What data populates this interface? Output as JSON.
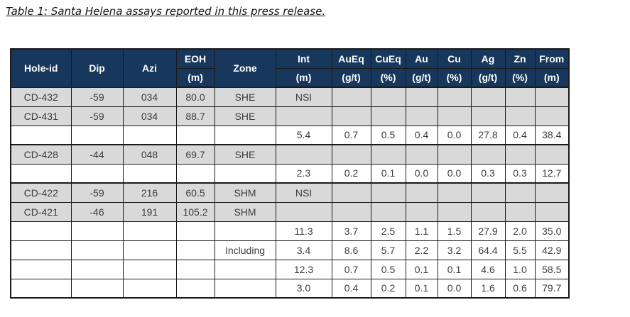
{
  "title": "Table 1: Santa Helena assays reported in this press release.",
  "colors": {
    "header_bg": "#17375d",
    "header_text": "#ffffff",
    "row_shaded": "#d9d9d9",
    "row_plain": "#ffffff",
    "border": "#1a1a1a",
    "body_text": "#3d3d3d"
  },
  "table": {
    "columns": [
      {
        "key": "hole-id",
        "label": "Hole-id",
        "unit": ""
      },
      {
        "key": "dip",
        "label": "Dip",
        "unit": ""
      },
      {
        "key": "azi",
        "label": "Azi",
        "unit": ""
      },
      {
        "key": "eoh",
        "label": "EOH",
        "unit": "(m)"
      },
      {
        "key": "zone",
        "label": "Zone",
        "unit": ""
      },
      {
        "key": "int",
        "label": "Int",
        "unit": "(m)"
      },
      {
        "key": "aueq",
        "label": "AuEq",
        "unit": "(g/t)"
      },
      {
        "key": "cueq",
        "label": "CuEq",
        "unit": "(%)"
      },
      {
        "key": "au",
        "label": "Au",
        "unit": "(g/t)"
      },
      {
        "key": "cu",
        "label": "Cu",
        "unit": "(%)"
      },
      {
        "key": "ag",
        "label": "Ag",
        "unit": "(g/t)"
      },
      {
        "key": "zn",
        "label": "Zn",
        "unit": "(%)"
      },
      {
        "key": "from",
        "label": "From",
        "unit": "(m)"
      }
    ],
    "rows": [
      {
        "shaded": true,
        "group_start": false,
        "cells": [
          "CD-432",
          "-59",
          "034",
          "80.0",
          "SHE",
          "NSI",
          "",
          "",
          "",
          "",
          "",
          "",
          ""
        ]
      },
      {
        "shaded": true,
        "group_start": false,
        "cells": [
          "CD-431",
          "-59",
          "034",
          "88.7",
          "SHE",
          "",
          "",
          "",
          "",
          "",
          "",
          "",
          ""
        ]
      },
      {
        "shaded": false,
        "group_start": false,
        "cells": [
          "",
          "",
          "",
          "",
          "",
          "5.4",
          "0.7",
          "0.5",
          "0.4",
          "0.0",
          "27.8",
          "0.4",
          "38.4"
        ]
      },
      {
        "shaded": true,
        "group_start": true,
        "cells": [
          "CD-428",
          "-44",
          "048",
          "69.7",
          "SHE",
          "",
          "",
          "",
          "",
          "",
          "",
          "",
          ""
        ]
      },
      {
        "shaded": false,
        "group_start": false,
        "cells": [
          "",
          "",
          "",
          "",
          "",
          "2.3",
          "0.2",
          "0.1",
          "0.0",
          "0.0",
          "0.3",
          "0.3",
          "12.7"
        ]
      },
      {
        "shaded": true,
        "group_start": true,
        "cells": [
          "CD-422",
          "-59",
          "216",
          "60.5",
          "SHM",
          "NSI",
          "",
          "",
          "",
          "",
          "",
          "",
          ""
        ]
      },
      {
        "shaded": true,
        "group_start": false,
        "cells": [
          "CD-421",
          "-46",
          "191",
          "105.2",
          "SHM",
          "",
          "",
          "",
          "",
          "",
          "",
          "",
          ""
        ]
      },
      {
        "shaded": false,
        "group_start": false,
        "cells": [
          "",
          "",
          "",
          "",
          "",
          "11.3",
          "3.7",
          "2.5",
          "1.1",
          "1.5",
          "27.9",
          "2.0",
          "35.0"
        ]
      },
      {
        "shaded": false,
        "group_start": false,
        "cells": [
          "",
          "",
          "",
          "",
          "Including",
          "3.4",
          "8.6",
          "5.7",
          "2.2",
          "3.2",
          "64.4",
          "5.5",
          "42.9"
        ]
      },
      {
        "shaded": false,
        "group_start": false,
        "cells": [
          "",
          "",
          "",
          "",
          "",
          "12.3",
          "0.7",
          "0.5",
          "0.1",
          "0.1",
          "4.6",
          "1.0",
          "58.5"
        ]
      },
      {
        "shaded": false,
        "group_start": false,
        "cells": [
          "",
          "",
          "",
          "",
          "",
          "3.0",
          "0.4",
          "0.2",
          "0.1",
          "0.0",
          "1.6",
          "0.6",
          "79.7"
        ]
      }
    ]
  }
}
